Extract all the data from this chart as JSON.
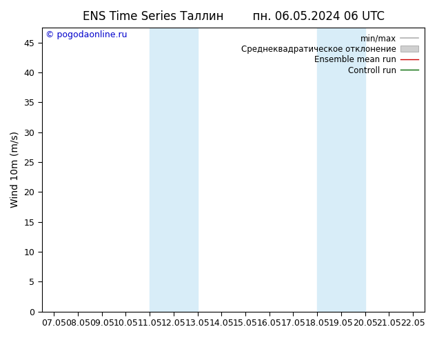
{
  "title": "ENS Time Series Таллин        пн. 06.05.2024 06 UTC",
  "ylabel": "Wind 10m (m/s)",
  "watermark": "© pogodaonline.ru",
  "x_tick_labels": [
    "07.05",
    "08.05",
    "09.05",
    "10.05",
    "11.05",
    "12.05",
    "13.05",
    "14.05",
    "15.05",
    "16.05",
    "17.05",
    "18.05",
    "19.05",
    "20.05",
    "21.05",
    "22.05"
  ],
  "x_tick_positions": [
    0,
    1,
    2,
    3,
    4,
    5,
    6,
    7,
    8,
    9,
    10,
    11,
    12,
    13,
    14,
    15
  ],
  "ylim": [
    0,
    47.5
  ],
  "yticks": [
    0,
    5,
    10,
    15,
    20,
    25,
    30,
    35,
    40,
    45
  ],
  "shaded_bands": [
    {
      "x_start": 4,
      "x_end": 6,
      "color": "#d8edf8"
    },
    {
      "x_start": 11,
      "x_end": 13,
      "color": "#d8edf8"
    }
  ],
  "legend_entries": [
    {
      "label": "min/max",
      "color": "#b0b0b0",
      "lw": 1.2,
      "type": "line"
    },
    {
      "label": "Среднеквадратическое отклонение",
      "color": "#d0d0d0",
      "type": "fill"
    },
    {
      "label": "Ensemble mean run",
      "color": "#cc0000",
      "lw": 1.0,
      "type": "line"
    },
    {
      "label": "Controll run",
      "color": "#006600",
      "lw": 1.0,
      "type": "line"
    }
  ],
  "bg_color": "#ffffff",
  "plot_bg_color": "#ffffff",
  "spine_color": "#000000",
  "tick_label_fontsize": 9,
  "axis_label_fontsize": 10,
  "title_fontsize": 12,
  "watermark_fontsize": 9,
  "watermark_color": "#0000cc",
  "legend_fontsize": 8.5
}
